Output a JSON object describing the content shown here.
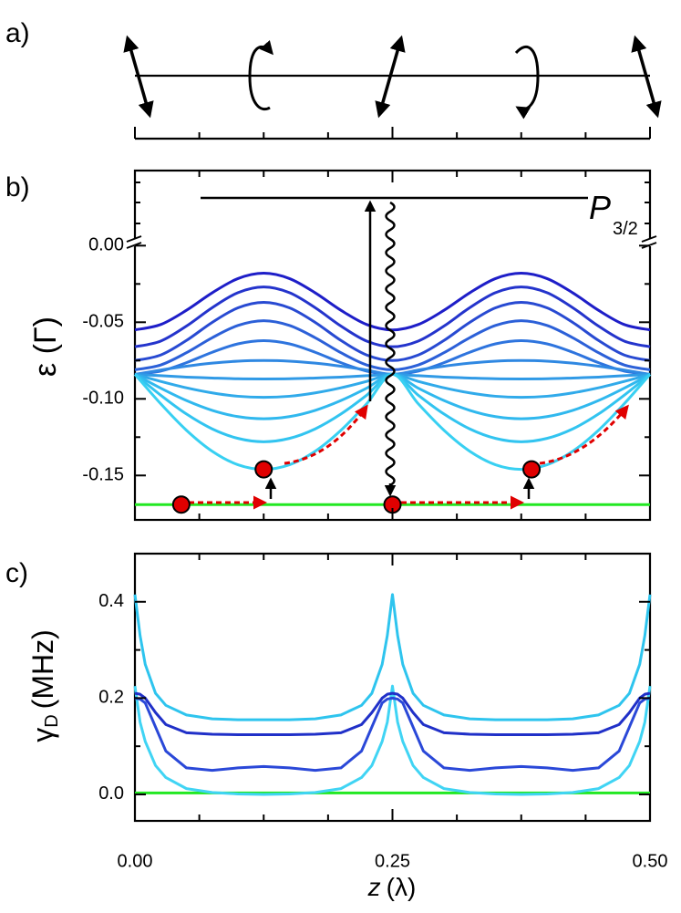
{
  "chart_data": [
    {
      "type": "polarization",
      "panel_label": "a)"
    },
    {
      "type": "line",
      "panel_label": "b)",
      "ylabel": "ε (Γ)",
      "level_label": "P",
      "level_subscript": "3/2",
      "xlim": [
        0,
        0.5
      ],
      "ylim": [
        -0.179,
        0.049
      ],
      "yticks": [
        {
          "value": 0,
          "label": "0.00"
        },
        {
          "value": -0.05,
          "label": "-0.05"
        },
        {
          "value": -0.1,
          "label": "-0.10"
        },
        {
          "value": -0.15,
          "label": "-0.15"
        }
      ],
      "x": [
        0,
        0.025,
        0.05,
        0.075,
        0.1,
        0.125,
        0.15,
        0.175,
        0.2,
        0.225,
        0.25,
        0.275,
        0.3,
        0.325,
        0.35,
        0.375,
        0.4,
        0.425,
        0.45,
        0.475,
        0.5
      ],
      "series": [
        {
          "color": "#1e1ec8",
          "values": [
            -0.055,
            -0.0515,
            -0.0422,
            -0.0308,
            -0.0215,
            -0.018,
            -0.0215,
            -0.0308,
            -0.0422,
            -0.0515,
            -0.055,
            -0.0515,
            -0.0422,
            -0.0308,
            -0.0215,
            -0.018,
            -0.0215,
            -0.0308,
            -0.0422,
            -0.0515,
            -0.055
          ]
        },
        {
          "color": "#2434cc",
          "values": [
            -0.066,
            -0.0623,
            -0.0525,
            -0.0405,
            -0.0307,
            -0.027,
            -0.0307,
            -0.0405,
            -0.0525,
            -0.0623,
            -0.066,
            -0.0623,
            -0.0525,
            -0.0405,
            -0.0307,
            -0.027,
            -0.0307,
            -0.0405,
            -0.0525,
            -0.0623,
            -0.066
          ]
        },
        {
          "color": "#284ad2",
          "values": [
            -0.075,
            -0.0714,
            -0.0619,
            -0.0501,
            -0.0406,
            -0.037,
            -0.0406,
            -0.0501,
            -0.0619,
            -0.0714,
            -0.075,
            -0.0714,
            -0.0619,
            -0.0501,
            -0.0406,
            -0.037,
            -0.0406,
            -0.0501,
            -0.0619,
            -0.0714,
            -0.075
          ]
        },
        {
          "color": "#2c60d8",
          "values": [
            -0.081,
            -0.0779,
            -0.0699,
            -0.0601,
            -0.0521,
            -0.049,
            -0.0521,
            -0.0601,
            -0.0699,
            -0.0779,
            -0.081,
            -0.0779,
            -0.0699,
            -0.0601,
            -0.0521,
            -0.049,
            -0.0521,
            -0.0601,
            -0.0699,
            -0.0779,
            -0.081
          ]
        },
        {
          "color": "#2e74de",
          "values": [
            -0.084,
            -0.0819,
            -0.0764,
            -0.0696,
            -0.0641,
            -0.062,
            -0.0641,
            -0.0696,
            -0.0764,
            -0.0819,
            -0.084,
            -0.0819,
            -0.0764,
            -0.0696,
            -0.0641,
            -0.062,
            -0.0641,
            -0.0696,
            -0.0764,
            -0.0819,
            -0.084
          ]
        },
        {
          "color": "#2f88e2",
          "values": [
            -0.084,
            -0.0812,
            -0.0787,
            -0.0767,
            -0.0754,
            -0.075,
            -0.0754,
            -0.0767,
            -0.0787,
            -0.0812,
            -0.084,
            -0.0812,
            -0.0787,
            -0.0767,
            -0.0754,
            -0.075,
            -0.0754,
            -0.0767,
            -0.0787,
            -0.0812,
            -0.084
          ]
        },
        {
          "color": "#309ae6",
          "values": [
            -0.084,
            -0.0849,
            -0.0858,
            -0.0864,
            -0.0869,
            -0.087,
            -0.0869,
            -0.0864,
            -0.0858,
            -0.0849,
            -0.084,
            -0.0849,
            -0.0858,
            -0.0864,
            -0.0869,
            -0.087,
            -0.0869,
            -0.0864,
            -0.0858,
            -0.0849,
            -0.084
          ]
        },
        {
          "color": "#30aaea",
          "values": [
            -0.084,
            -0.0886,
            -0.0928,
            -0.0961,
            -0.0983,
            -0.099,
            -0.0983,
            -0.0961,
            -0.0928,
            -0.0886,
            -0.084,
            -0.0886,
            -0.0928,
            -0.0961,
            -0.0983,
            -0.099,
            -0.0983,
            -0.0961,
            -0.0928,
            -0.0886,
            -0.084
          ]
        },
        {
          "color": "#30b8ee",
          "values": [
            -0.084,
            -0.093,
            -0.1011,
            -0.1075,
            -0.1116,
            -0.113,
            -0.1116,
            -0.1075,
            -0.1011,
            -0.093,
            -0.084,
            -0.093,
            -0.1011,
            -0.1075,
            -0.1116,
            -0.113,
            -0.1116,
            -0.1075,
            -0.1011,
            -0.093,
            -0.084
          ]
        },
        {
          "color": "#32c4f0",
          "values": [
            -0.084,
            -0.0976,
            -0.1099,
            -0.1196,
            -0.1258,
            -0.128,
            -0.1258,
            -0.1196,
            -0.1099,
            -0.0976,
            -0.084,
            -0.0976,
            -0.1099,
            -0.1196,
            -0.1258,
            -0.128,
            -0.1258,
            -0.1196,
            -0.1099,
            -0.0976,
            -0.084
          ]
        },
        {
          "color": "#38d0f2",
          "values": [
            -0.084,
            -0.1032,
            -0.1205,
            -0.1342,
            -0.143,
            -0.146,
            -0.143,
            -0.1342,
            -0.1205,
            -0.1032,
            -0.084,
            -0.1032,
            -0.1205,
            -0.1342,
            -0.143,
            -0.146,
            -0.143,
            -0.1342,
            -0.1205,
            -0.1032,
            -0.084
          ]
        },
        {
          "color": "#22e822",
          "values": [
            -0.169,
            -0.169,
            -0.169,
            -0.169,
            -0.169,
            -0.169,
            -0.169,
            -0.169,
            -0.169,
            -0.169,
            -0.169,
            -0.169,
            -0.169,
            -0.169,
            -0.169,
            -0.169,
            -0.169,
            -0.169,
            -0.169,
            -0.169,
            -0.169
          ]
        }
      ],
      "atoms": {
        "color": "#e00000",
        "x": [
          0.045,
          0.125,
          0.25,
          0.385
        ],
        "values": [
          -0.169,
          -0.146,
          -0.169,
          -0.146
        ]
      }
    },
    {
      "type": "line",
      "panel_label": "c)",
      "ylabel": "γ",
      "ylabel_subscript": "D",
      "ylabel_unit": "(MHz)",
      "xlabel": "z",
      "xlabel_unit": "(λ)",
      "xlim": [
        0,
        0.5
      ],
      "ylim": [
        -0.055,
        0.5
      ],
      "xticks": [
        {
          "value": 0,
          "label": "0.00"
        },
        {
          "value": 0.25,
          "label": "0.25"
        },
        {
          "value": 0.5,
          "label": "0.50"
        }
      ],
      "yticks": [
        {
          "value": 0,
          "label": "0.0"
        },
        {
          "value": 0.2,
          "label": "0.2"
        },
        {
          "value": 0.4,
          "label": "0.4"
        }
      ],
      "x": [
        0,
        0.005,
        0.01,
        0.02,
        0.03,
        0.05,
        0.075,
        0.1,
        0.125,
        0.15,
        0.175,
        0.2,
        0.22,
        0.23,
        0.24,
        0.245,
        0.25,
        0.255,
        0.26,
        0.27,
        0.28,
        0.3,
        0.325,
        0.35,
        0.375,
        0.4,
        0.425,
        0.45,
        0.47,
        0.48,
        0.49,
        0.495,
        0.5
      ],
      "series": [
        {
          "color": "#22e822",
          "values": [
            0.003,
            0.003,
            0.003,
            0.003,
            0.003,
            0.003,
            0.003,
            0.003,
            0.003,
            0.003,
            0.003,
            0.003,
            0.003,
            0.003,
            0.003,
            0.003,
            0.003,
            0.003,
            0.003,
            0.003,
            0.003,
            0.003,
            0.003,
            0.003,
            0.003,
            0.003,
            0.003,
            0.003,
            0.003,
            0.003,
            0.003,
            0.003,
            0.003
          ]
        },
        {
          "color": "#40d4f4",
          "values": [
            0.225,
            0.15,
            0.11,
            0.06,
            0.035,
            0.012,
            0.004,
            0.001,
            0,
            0.001,
            0.004,
            0.012,
            0.035,
            0.06,
            0.11,
            0.15,
            0.225,
            0.15,
            0.11,
            0.06,
            0.035,
            0.012,
            0.004,
            0.001,
            0,
            0.001,
            0.004,
            0.012,
            0.035,
            0.06,
            0.11,
            0.15,
            0.225
          ]
        },
        {
          "color": "#2a48d8",
          "values": [
            0.2,
            0.198,
            0.19,
            0.14,
            0.09,
            0.055,
            0.05,
            0.055,
            0.058,
            0.055,
            0.05,
            0.055,
            0.09,
            0.14,
            0.19,
            0.198,
            0.2,
            0.198,
            0.19,
            0.14,
            0.09,
            0.055,
            0.05,
            0.055,
            0.058,
            0.055,
            0.05,
            0.055,
            0.09,
            0.14,
            0.19,
            0.198,
            0.2
          ]
        },
        {
          "color": "#2030c8",
          "values": [
            0.21,
            0.208,
            0.2,
            0.17,
            0.145,
            0.128,
            0.125,
            0.124,
            0.124,
            0.124,
            0.125,
            0.128,
            0.145,
            0.17,
            0.2,
            0.208,
            0.21,
            0.208,
            0.2,
            0.17,
            0.145,
            0.128,
            0.125,
            0.124,
            0.124,
            0.124,
            0.125,
            0.128,
            0.145,
            0.17,
            0.2,
            0.208,
            0.21
          ]
        },
        {
          "color": "#2ec4ee",
          "values": [
            0.415,
            0.33,
            0.27,
            0.21,
            0.185,
            0.165,
            0.157,
            0.155,
            0.155,
            0.155,
            0.157,
            0.165,
            0.185,
            0.21,
            0.27,
            0.33,
            0.415,
            0.33,
            0.27,
            0.21,
            0.185,
            0.165,
            0.157,
            0.155,
            0.155,
            0.155,
            0.157,
            0.165,
            0.185,
            0.21,
            0.27,
            0.33,
            0.415
          ]
        }
      ]
    }
  ]
}
